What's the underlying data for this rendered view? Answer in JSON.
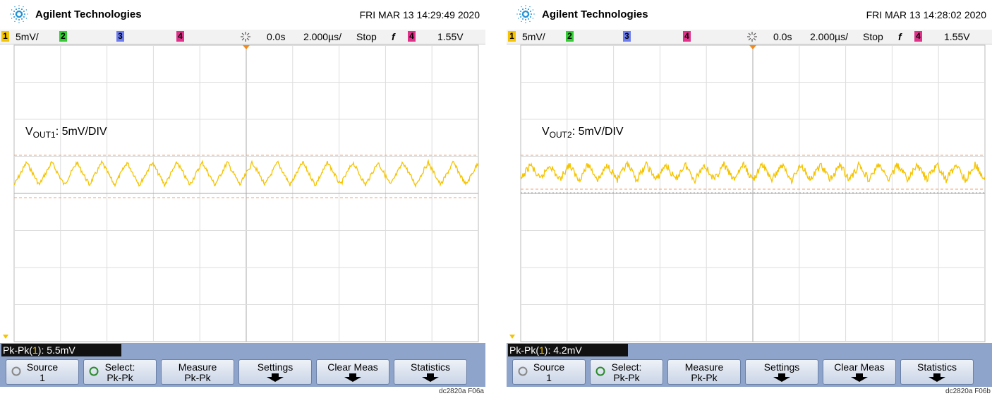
{
  "panels": [
    {
      "brand": "Agilent Technologies",
      "datetime": "FRI MAR 13 14:29:49 2020",
      "status": {
        "ch1": "1",
        "scale": "5mV/",
        "ch2": "2",
        "ch3": "3",
        "ch4": "4",
        "delay": "0.0s",
        "timebase": "2.000µs/",
        "run": "Stop",
        "slope": "f",
        "trig_ch": "4",
        "trig_level": "1.55V"
      },
      "annotation": {
        "main": "V",
        "sub": "OUT1",
        "rest": ": 5mV/DIV"
      },
      "measurement": {
        "name": "Pk-Pk(",
        "ch": "1",
        "value": "): 5.5mV"
      },
      "softkeys": [
        {
          "line1": "Source",
          "line2": "1"
        },
        {
          "line1": "Select:",
          "line2": "Pk-Pk"
        },
        {
          "line1": "Measure",
          "line2": "Pk-Pk"
        },
        {
          "line1": "Settings"
        },
        {
          "line1": "Clear Meas"
        },
        {
          "line1": "Statistics"
        }
      ],
      "figure_label": "dc2820a F06a"
    },
    {
      "brand": "Agilent Technologies",
      "datetime": "FRI MAR 13 14:28:02 2020",
      "status": {
        "ch1": "1",
        "scale": "5mV/",
        "ch2": "2",
        "ch3": "3",
        "ch4": "4",
        "delay": "0.0s",
        "timebase": "2.000µs/",
        "run": "Stop",
        "slope": "f",
        "trig_ch": "4",
        "trig_level": "1.55V"
      },
      "annotation": {
        "main": "V",
        "sub": "OUT2",
        "rest": ": 5mV/DIV"
      },
      "measurement": {
        "name": "Pk-Pk(",
        "ch": "1",
        "value": "): 4.2mV"
      },
      "softkeys": [
        {
          "line1": "Source",
          "line2": "1"
        },
        {
          "line1": "Select:",
          "line2": "Pk-Pk"
        },
        {
          "line1": "Measure",
          "line2": "Pk-Pk"
        },
        {
          "line1": "Settings"
        },
        {
          "line1": "Clear Meas"
        },
        {
          "line1": "Statistics"
        }
      ],
      "figure_label": "dc2820a F06b"
    }
  ]
}
